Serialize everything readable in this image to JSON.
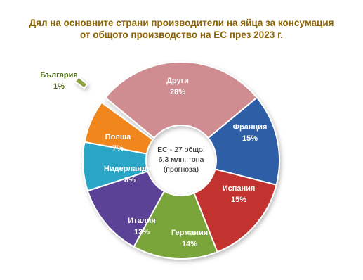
{
  "chart_data": {
    "type": "pie",
    "variant": "donut",
    "title_lines": [
      "Дял на основните страни производители на яйца за консумация",
      "от общото производство на ЕС през 2023 г."
    ],
    "center_label_lines": [
      "ЕС - 27 общо:",
      "6,3 млн. тона",
      "(прогноза)"
    ],
    "slices": [
      {
        "name": "Други",
        "value": 28,
        "label": "28%",
        "color": "#cf8d91"
      },
      {
        "name": "Франция",
        "value": 15,
        "label": "15%",
        "color": "#2f5ea6"
      },
      {
        "name": "Испания",
        "value": 15,
        "label": "15%",
        "color": "#c2302d"
      },
      {
        "name": "Германия",
        "value": 14,
        "label": "14%",
        "color": "#7aa53a"
      },
      {
        "name": "Италия",
        "value": 12,
        "label": "12%",
        "color": "#5b4396"
      },
      {
        "name": "Нидерландия",
        "value": 8,
        "label": "8%",
        "color": "#2aa5c6"
      },
      {
        "name": "Полша",
        "value": 7,
        "label": "7%",
        "color": "#f0861c"
      },
      {
        "name": "България",
        "value": 1,
        "label": "1%",
        "color": "#8aa13f",
        "exploded": true
      }
    ]
  }
}
